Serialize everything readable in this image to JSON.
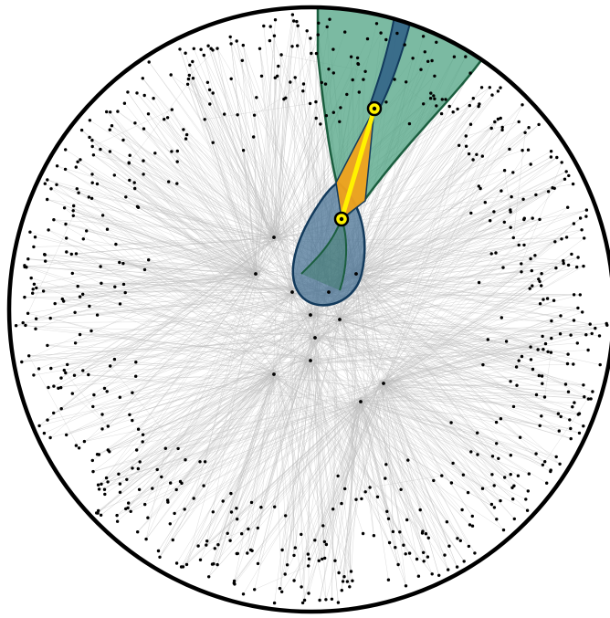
{
  "figure": {
    "description_labels": [],
    "colors": {
      "background": "#ffffff",
      "disk_boundary": "#000000",
      "edges": "#bdbdbd",
      "nodes": "#000000",
      "wedge_fill": "#4fa383",
      "wedge_stroke": "#1b5e3f",
      "teardrop_fill": "#3f6b8f",
      "teardrop_stroke": "#123a5c",
      "query_triangle": "#f0a21c",
      "query_path": "#fff200",
      "query_point_fill": "#fff200",
      "query_point_stroke": "#000000"
    },
    "icons": [
      "query-point-icon"
    ],
    "seed": 7,
    "node_count": 700
  }
}
